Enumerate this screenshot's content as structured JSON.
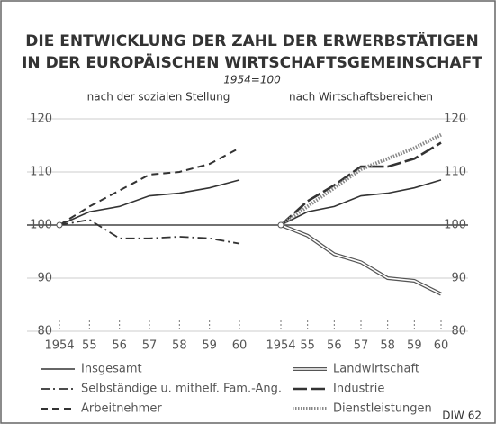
{
  "title": "DIE ENTWICKLUNG DER ZAHL DER ERWERBSTÄTIGEN",
  "title_line2": "IN DER EUROPÄISCHEN WIRTSCHAFTSGEMEINSCHAFT",
  "subtitle": "1954=100",
  "source": "DIW 62",
  "chart_data": [
    {
      "type": "line",
      "subtitle": "nach der sozialen Stellung",
      "yaxis_side": "left",
      "categories": [
        "1954",
        "55",
        "56",
        "57",
        "58",
        "59",
        "60"
      ],
      "ylim": [
        80,
        120
      ],
      "yticks": [
        80,
        90,
        100,
        110,
        120
      ],
      "grid": true,
      "series": [
        {
          "name": "Insgesamt",
          "color": "#333333",
          "style": "solid",
          "values": [
            100,
            102.5,
            103.5,
            105.5,
            106,
            107,
            108.5
          ]
        },
        {
          "name": "Selbständige u. mithelf. Fam.-Ang.",
          "color": "#333333",
          "style": "dashdot",
          "values": [
            100,
            101,
            97.5,
            97.5,
            97.8,
            97.5,
            96.5
          ]
        },
        {
          "name": "Arbeitnehmer",
          "color": "#333333",
          "style": "dashed",
          "values": [
            100,
            103.5,
            106.5,
            109.5,
            110,
            111.5,
            114.5
          ]
        }
      ]
    },
    {
      "type": "line",
      "subtitle": "nach Wirtschaftsbereichen",
      "yaxis_side": "right",
      "categories": [
        "1954",
        "55",
        "56",
        "57",
        "58",
        "59",
        "60"
      ],
      "ylim": [
        80,
        120
      ],
      "yticks": [
        80,
        90,
        100,
        110,
        120
      ],
      "grid": true,
      "series": [
        {
          "color": "#333333",
          "style": "solid",
          "values": [
            100,
            102.5,
            103.5,
            105.5,
            106,
            107,
            108.5
          ]
        },
        {
          "name": "Landwirtschaft",
          "color": "#555555",
          "style": "double",
          "values": [
            100,
            98,
            94.5,
            93,
            90,
            89.5,
            87
          ]
        },
        {
          "name": "Industrie",
          "color": "#333333",
          "style": "longdash",
          "values": [
            100,
            104.5,
            107.5,
            111,
            111,
            112.5,
            115.5
          ]
        },
        {
          "name": "Dienstleistungen",
          "color": "#888888",
          "style": "dotted",
          "values": [
            100,
            103.5,
            107,
            110.5,
            112.5,
            114.5,
            117
          ]
        }
      ]
    }
  ]
}
